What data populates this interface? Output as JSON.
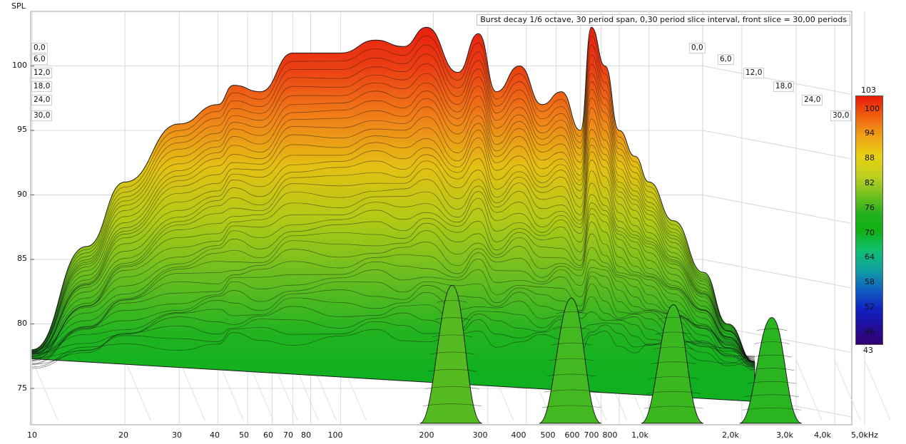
{
  "chart_data": {
    "type": "waterfall-3d",
    "title": "Burst decay 1/6 octave, 30 period span, 0,30 period slice interval,  front slice = 30,00 periods",
    "ylabel": "SPL",
    "xlabel": "",
    "x_unit": "kHz",
    "x_scale": "log",
    "xlim": [
      10,
      5000
    ],
    "ylim": [
      73,
      104
    ],
    "x_ticks": [
      "10",
      "20",
      "30",
      "40",
      "50",
      "60",
      "70",
      "80",
      "100",
      "200",
      "300",
      "400",
      "500",
      "600",
      "700",
      "800",
      "1,0k",
      "2,0k",
      "3,0k",
      "4,0k",
      "5,0kHz"
    ],
    "x_tick_values": [
      10,
      20,
      30,
      40,
      50,
      60,
      70,
      80,
      100,
      200,
      300,
      400,
      500,
      600,
      700,
      800,
      1000,
      2000,
      3000,
      4000,
      5000
    ],
    "y_ticks": [
      "75",
      "80",
      "85",
      "90",
      "95",
      "100"
    ],
    "y_tick_values": [
      75,
      80,
      85,
      90,
      95,
      100
    ],
    "slice_labels": [
      "0,0",
      "6,0",
      "12,0",
      "18,0",
      "24,0",
      "30,0"
    ],
    "colorbar": {
      "max_label": "103",
      "min_label": "43",
      "ticks": [
        "100",
        "94",
        "88",
        "82",
        "76",
        "70",
        "64",
        "58",
        "52",
        "46"
      ],
      "tick_values": [
        100,
        94,
        88,
        82,
        76,
        70,
        64,
        58,
        52,
        46
      ]
    },
    "front_slice_periods": 30,
    "peak_spl_envelope": {
      "freq_hz": [
        10,
        15,
        20,
        30,
        40,
        45,
        55,
        70,
        100,
        130,
        160,
        190,
        240,
        280,
        320,
        380,
        450,
        520,
        600,
        650,
        720,
        800,
        900,
        1000,
        1200,
        1500,
        1800,
        2200
      ],
      "spl_db": [
        78,
        86,
        91,
        95.5,
        97,
        98.5,
        98,
        101,
        101,
        102,
        101.5,
        103,
        99.5,
        102.5,
        98,
        100,
        97,
        98,
        95,
        103,
        100,
        95,
        93,
        91,
        88,
        84,
        80,
        77
      ]
    },
    "colors": {
      "high": "#e81a0a",
      "mid_high": "#f0a018",
      "mid": "#e8d010",
      "mid_low": "#70c020",
      "low": "#10b010"
    }
  }
}
